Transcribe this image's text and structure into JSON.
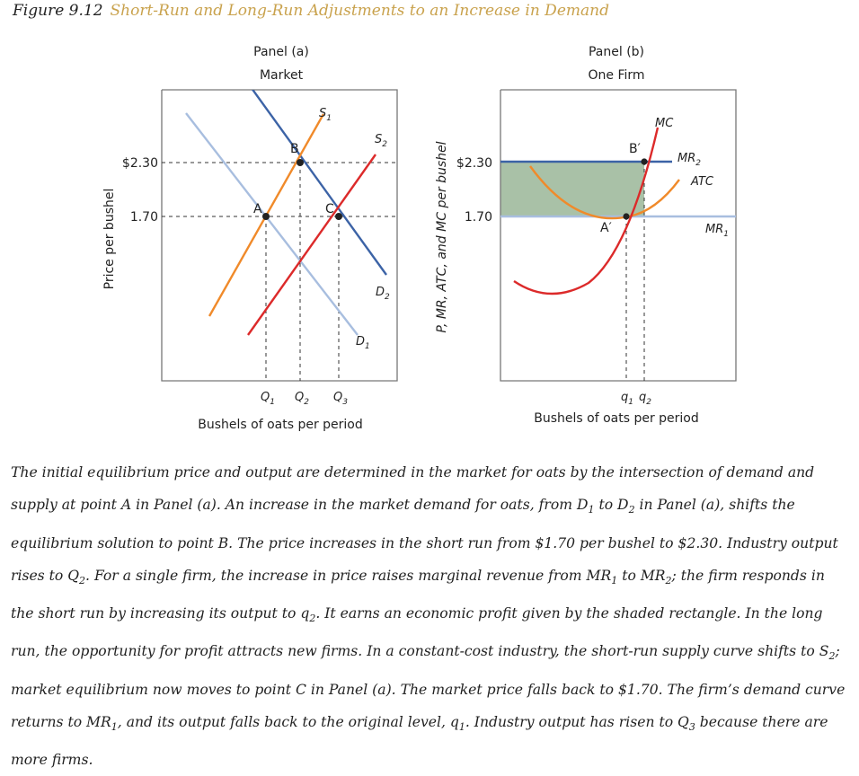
{
  "figure": {
    "number": "Figure 9.12",
    "title": "Short-Run and Long-Run Adjustments to an Increase in Demand"
  },
  "colors": {
    "demand": "#3c63a6",
    "demand_initial": "#a8bedf",
    "supply_initial": "#f08a2a",
    "supply_shifted": "#dc2a2a",
    "atc": "#f08a2a",
    "mc": "#dc2a2a",
    "mr_high": "#3c63a6",
    "mr_low": "#a8bedf",
    "profit_fill": "#a9c1a7"
  },
  "chart_data": [
    {
      "type": "line",
      "panel": "Panel (a)",
      "subtitle": "Market",
      "ylabel": "Price per bushel",
      "xlabel": "Bushels of oats per period",
      "y_ticks": [
        "$2.30",
        "1.70"
      ],
      "x_ticks": [
        "Q1",
        "Q2",
        "Q3"
      ],
      "y_tick_values": [
        2.3,
        1.7
      ],
      "series": [
        {
          "name": "D1",
          "points": [
            [
              0.28,
              2.68
            ],
            [
              2.28,
              1.02
            ]
          ]
        },
        {
          "name": "D2",
          "points": [
            [
              1.1,
              2.82
            ],
            [
              2.82,
              1.35
            ]
          ]
        },
        {
          "name": "S1",
          "points": [
            [
              0.55,
              1.22
            ],
            [
              1.85,
              2.65
            ]
          ]
        },
        {
          "name": "S2",
          "points": [
            [
              1.0,
              1.05
            ],
            [
              2.6,
              2.55
            ]
          ]
        }
      ],
      "points": [
        {
          "label": "A",
          "x": 1.0,
          "y": 1.7
        },
        {
          "label": "B",
          "x": 1.5,
          "y": 2.3
        },
        {
          "label": "C",
          "x": 2.0,
          "y": 1.7
        }
      ]
    },
    {
      "type": "line",
      "panel": "Panel (b)",
      "subtitle": "One Firm",
      "ylabel": "P, MR, ATC, and MC per bushel",
      "xlabel": "Bushels of oats per period",
      "y_ticks": [
        "$2.30",
        "1.70"
      ],
      "x_ticks": [
        "q1",
        "q2"
      ],
      "y_tick_values": [
        2.3,
        1.7
      ],
      "series": [
        {
          "name": "MR2",
          "value": 2.3
        },
        {
          "name": "MR1",
          "value": 1.7
        },
        {
          "name": "ATC"
        },
        {
          "name": "MC"
        }
      ],
      "points": [
        {
          "label": "A′",
          "x": 1.0,
          "y": 1.7
        },
        {
          "label": "B′",
          "x": 1.15,
          "y": 2.3
        }
      ],
      "shaded_region": "economic profit rectangle between $2.30 and 1.70 from 0 to q2"
    }
  ],
  "caption": [
    {
      "t": "The initial equilibrium price and output are determined in the market for oats by the intersection of demand and supply at point A in Panel (a). An increase in the market demand for oats, from D"
    },
    {
      "s": "1"
    },
    {
      "t": " to D"
    },
    {
      "s": "2"
    },
    {
      "t": " in Panel (a), shifts the equilibrium solution to point B. The price increases in the short run from $1.70 per bushel to $2.30. Industry output rises to Q"
    },
    {
      "s": "2"
    },
    {
      "t": ". For a single firm, the increase in price raises marginal revenue from MR"
    },
    {
      "s": "1"
    },
    {
      "t": " to MR"
    },
    {
      "s": "2"
    },
    {
      "t": "; the firm responds in the short run by increasing its output to q"
    },
    {
      "s": "2"
    },
    {
      "t": ". It earns an economic profit given by the shaded rectangle. In the long run, the opportunity for profit attracts new firms. In a constant-cost industry, the short-run supply curve shifts to S"
    },
    {
      "s": "2"
    },
    {
      "t": "; market equilibrium now moves to point C in Panel (a). The market price falls back to $1.70. The firm’s demand curve returns to MR"
    },
    {
      "s": "1"
    },
    {
      "t": ", and its output falls back to the original level, q"
    },
    {
      "s": "1"
    },
    {
      "t": ". Industry output has risen to Q"
    },
    {
      "s": "3"
    },
    {
      "t": " because there are more firms."
    }
  ]
}
